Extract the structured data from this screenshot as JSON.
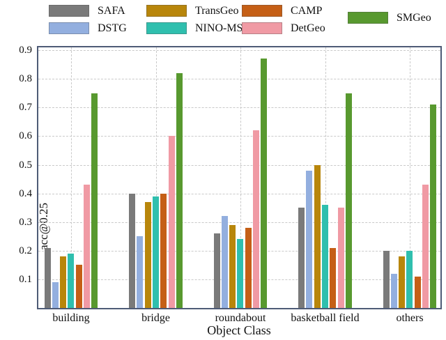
{
  "chart_data": {
    "type": "bar",
    "title": "",
    "xlabel": "Object Class",
    "ylabel": "acc@0.25",
    "ylim": [
      0,
      0.91
    ],
    "yticks": [
      0.1,
      0.2,
      0.3,
      0.4,
      0.5,
      0.6,
      0.7,
      0.8,
      0.9
    ],
    "grid": true,
    "legend_position": "top",
    "categories": [
      "building",
      "bridge",
      "roundabout",
      "basketball field",
      "others"
    ],
    "series": [
      {
        "name": "SAFA",
        "color": "#7a7a7a",
        "values": [
          0.21,
          0.4,
          0.26,
          0.35,
          0.2
        ]
      },
      {
        "name": "DSTG",
        "color": "#93afdf",
        "values": [
          0.09,
          0.25,
          0.32,
          0.48,
          0.12
        ]
      },
      {
        "name": "TransGeo",
        "color": "#b8860b",
        "values": [
          0.18,
          0.37,
          0.29,
          0.5,
          0.18
        ]
      },
      {
        "name": "NINO-MSRA",
        "color": "#2fbfae",
        "values": [
          0.19,
          0.39,
          0.24,
          0.36,
          0.2
        ]
      },
      {
        "name": "CAMP",
        "color": "#c55f16",
        "values": [
          0.15,
          0.4,
          0.28,
          0.21,
          0.11
        ]
      },
      {
        "name": "DetGeo",
        "color": "#f09aa4",
        "values": [
          0.43,
          0.6,
          0.62,
          0.35,
          0.43
        ]
      },
      {
        "name": "SMGeo",
        "color": "#58992f",
        "values": [
          0.75,
          0.82,
          0.87,
          0.75,
          0.71
        ]
      }
    ],
    "legend_columns": [
      [
        "SAFA",
        "DSTG"
      ],
      [
        "TransGeo",
        "NINO-MSRA"
      ],
      [
        "CAMP",
        "DetGeo"
      ],
      [
        "SMGeo"
      ]
    ]
  },
  "colors": {
    "axis": "#4e5b76",
    "grid": "#c9c9c9",
    "text": "#111111"
  }
}
